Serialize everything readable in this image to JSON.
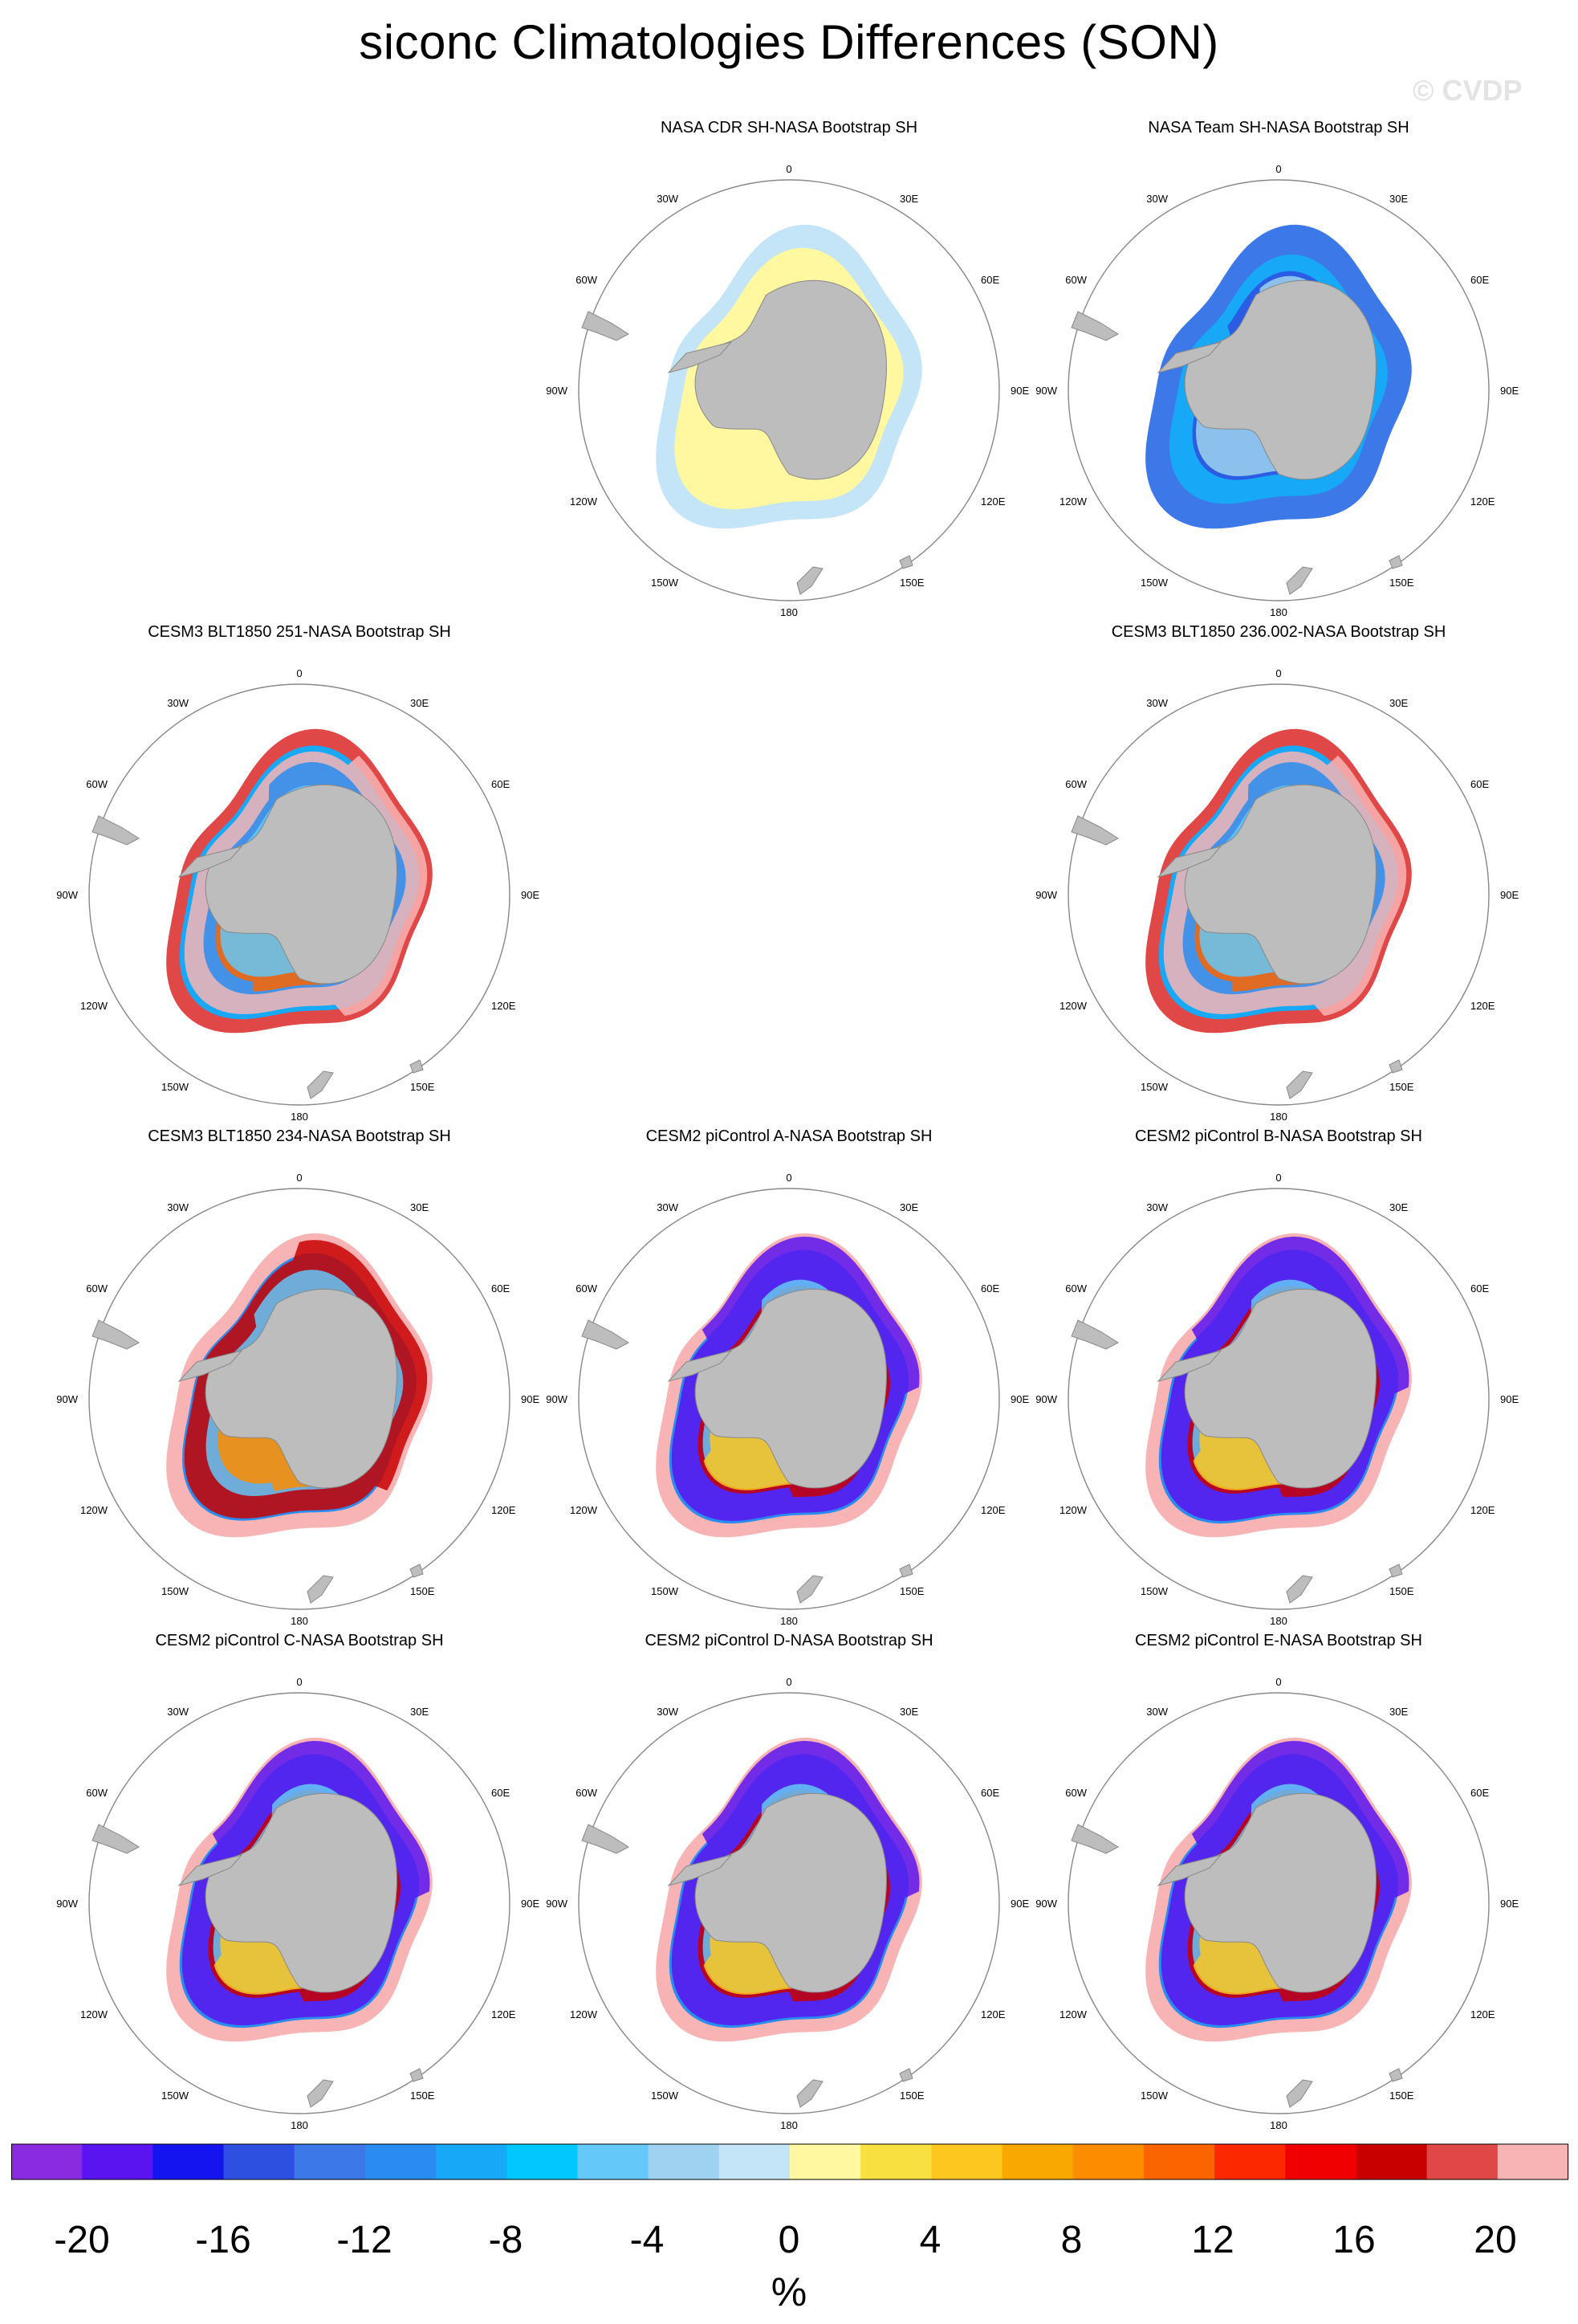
{
  "title": "siconc Climatologies Differences (SON)",
  "watermark": "© CVDP",
  "units": "%",
  "colorbar": {
    "colors": [
      "#8a2be2",
      "#5a14f0",
      "#1414f0",
      "#2e50e0",
      "#3c78e8",
      "#2a8cf0",
      "#18a8f8",
      "#00c8ff",
      "#64c8f8",
      "#9ed2f0",
      "#c4e4f8",
      "#fff8a0",
      "#f8e040",
      "#fcc820",
      "#f8a800",
      "#fc8c00",
      "#fc6400",
      "#fc2800",
      "#f00000",
      "#c80000",
      "#e04848",
      "#f8b4b4"
    ],
    "labels": [
      "-20",
      "-16",
      "-12",
      "-8",
      "-4",
      "0",
      "4",
      "8",
      "12",
      "16",
      "20"
    ]
  },
  "lon_labels": [
    "0",
    "30E",
    "60E",
    "90E",
    "120E",
    "150E",
    "180",
    "150W",
    "120W",
    "90W",
    "60W",
    "30W"
  ],
  "panels": [
    {
      "title": "NASA CDR SH-NASA Bootstrap SH",
      "style": "cdr"
    },
    {
      "title": "NASA Team SH-NASA Bootstrap SH",
      "style": "team"
    },
    {
      "title": "CESM3 BLT1850 251-NASA Bootstrap SH",
      "style": "cesm3"
    },
    {
      "title": "CESM3 BLT1850 236.002-NASA Bootstrap SH",
      "style": "cesm3"
    },
    {
      "title": "CESM3 BLT1850 234-NASA Bootstrap SH",
      "style": "cesm3b"
    },
    {
      "title": "CESM2 piControl A-NASA Bootstrap SH",
      "style": "cesm2"
    },
    {
      "title": "CESM2 piControl B-NASA Bootstrap SH",
      "style": "cesm2"
    },
    {
      "title": "CESM2 piControl C-NASA Bootstrap SH",
      "style": "cesm2"
    },
    {
      "title": "CESM2 piControl D-NASA Bootstrap SH",
      "style": "cesm2"
    },
    {
      "title": "CESM2 piControl E-NASA Bootstrap SH",
      "style": "cesm2"
    }
  ]
}
